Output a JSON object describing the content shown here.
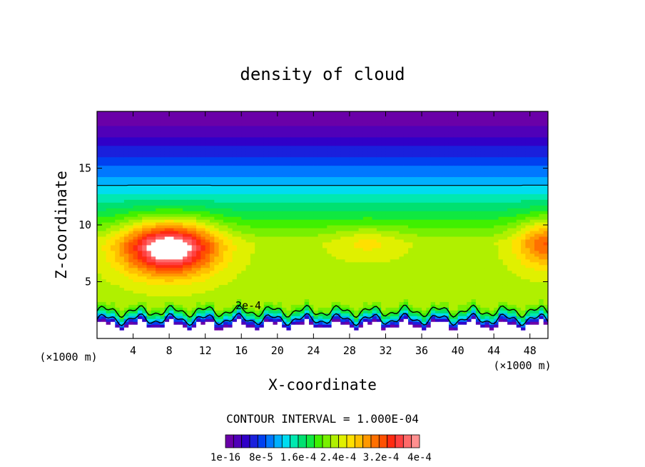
{
  "chart_data": {
    "type": "heatmap",
    "title": "density of cloud",
    "xlabel": "X-coordinate",
    "ylabel": "Z-coordinate",
    "x_unit_left": "(×1000 m)",
    "x_unit_right": "(×1000 m)",
    "xlim": [
      0,
      50
    ],
    "ylim": [
      0,
      20
    ],
    "x_ticks": [
      "4",
      "8",
      "12",
      "16",
      "20",
      "24",
      "28",
      "32",
      "36",
      "40",
      "44",
      "48"
    ],
    "x_tick_values": [
      4,
      8,
      12,
      16,
      20,
      24,
      28,
      32,
      36,
      40,
      44,
      48
    ],
    "y_ticks": [
      "5",
      "10",
      "15"
    ],
    "y_tick_values": [
      5,
      10,
      15
    ],
    "contour_interval_text": "CONTOUR INTERVAL = 1.000E-04",
    "contour_label": "2e-4",
    "colorbar_labels": [
      "1e-16",
      "8e-5",
      "1.6e-4",
      "2.4e-4",
      "3.2e-4",
      "4e-4"
    ],
    "colorbar_colors": [
      "#6a00a8",
      "#5000b8",
      "#3000c8",
      "#1a20dc",
      "#0040f0",
      "#0078ff",
      "#00b0ff",
      "#00dcf0",
      "#00e8b0",
      "#00e070",
      "#10e840",
      "#40f000",
      "#78f000",
      "#b0f000",
      "#e0f000",
      "#ffe000",
      "#ffc000",
      "#ff9800",
      "#ff7000",
      "#ff5000",
      "#ff2a10",
      "#ff4040",
      "#ff6a6a",
      "#ff9090"
    ],
    "field": {
      "max_center": [
        8,
        8
      ],
      "max_value": 0.00044,
      "contour_levels": [
        0.0002,
        0.0001
      ]
    }
  }
}
